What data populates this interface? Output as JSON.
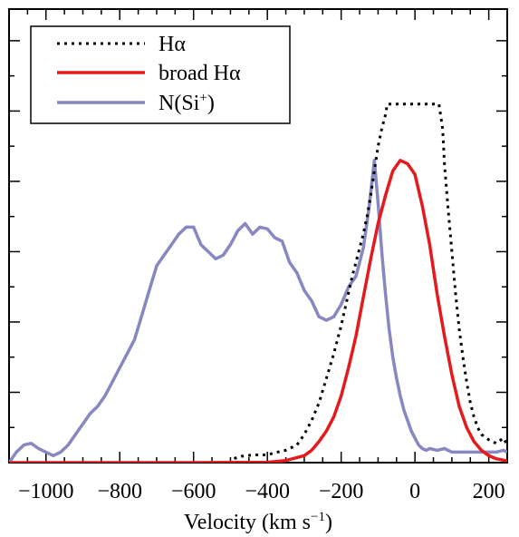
{
  "chart_data": {
    "type": "line",
    "xlabel": "Velocity (km s",
    "xlabel_sup": "−1",
    "xlabel_close": ")",
    "xlim": [
      -1100,
      250
    ],
    "ylim": [
      0,
      1
    ],
    "x_ticks": [
      -1000,
      -800,
      -600,
      -400,
      -200,
      0,
      200
    ],
    "x_tick_labels": [
      "−1000",
      "−800",
      "−600",
      "−400",
      "−200",
      "0",
      "200"
    ],
    "y_tick_count": 6,
    "legend_position": "top-left",
    "series": [
      {
        "name": "Hα",
        "color": "#000000",
        "style": "dotted",
        "x": [
          -490,
          -470,
          -440,
          -400,
          -380,
          -350,
          -320,
          -300,
          -280,
          -260,
          -240,
          -220,
          -200,
          -185,
          -170,
          -160,
          -150,
          -140,
          -130,
          -120,
          -110,
          -100,
          -90,
          -80,
          -75,
          65,
          75,
          80,
          90,
          100,
          110,
          120,
          130,
          140,
          150,
          160,
          170,
          180,
          200,
          220,
          240,
          250
        ],
        "y": [
          0.012,
          0.018,
          0.022,
          0.022,
          0.028,
          0.035,
          0.05,
          0.08,
          0.12,
          0.17,
          0.24,
          0.31,
          0.39,
          0.46,
          0.53,
          0.57,
          0.61,
          0.65,
          0.7,
          0.76,
          0.83,
          0.9,
          0.95,
          0.99,
          1.02,
          1.02,
          0.95,
          0.85,
          0.72,
          0.6,
          0.48,
          0.38,
          0.3,
          0.23,
          0.17,
          0.13,
          0.1,
          0.08,
          0.065,
          0.055,
          0.07,
          0.05
        ]
      },
      {
        "name": "broad Hα",
        "color": "#e41a1c",
        "style": "solid",
        "x": [
          -1100,
          -600,
          -400,
          -350,
          -300,
          -280,
          -260,
          -240,
          -220,
          -200,
          -180,
          -160,
          -140,
          -120,
          -100,
          -80,
          -60,
          -40,
          -20,
          0,
          20,
          40,
          60,
          80,
          100,
          120,
          140,
          160,
          180,
          200,
          220,
          250
        ],
        "y": [
          0,
          0,
          0.001,
          0.006,
          0.02,
          0.035,
          0.06,
          0.09,
          0.13,
          0.19,
          0.27,
          0.36,
          0.47,
          0.58,
          0.68,
          0.76,
          0.83,
          0.86,
          0.85,
          0.82,
          0.73,
          0.62,
          0.48,
          0.36,
          0.25,
          0.16,
          0.1,
          0.06,
          0.035,
          0.02,
          0.011,
          0.005
        ]
      },
      {
        "name": "N(Si",
        "name_sup": "+",
        "name_close": ")",
        "color": "#8787c2",
        "style": "solid",
        "x": [
          -1100,
          -1080,
          -1060,
          -1040,
          -1020,
          -1000,
          -980,
          -960,
          -940,
          -920,
          -900,
          -880,
          -860,
          -840,
          -820,
          -800,
          -780,
          -760,
          -740,
          -720,
          -700,
          -680,
          -660,
          -640,
          -620,
          -600,
          -580,
          -560,
          -540,
          -520,
          -500,
          -480,
          -460,
          -440,
          -420,
          -400,
          -380,
          -360,
          -340,
          -320,
          -300,
          -280,
          -260,
          -240,
          -220,
          -200,
          -180,
          -160,
          -140,
          -125,
          -110,
          -100,
          -90,
          -80,
          -70,
          -60,
          -50,
          -40,
          -30,
          -20,
          -10,
          0,
          10,
          20,
          30,
          40,
          60,
          80,
          100,
          140,
          180,
          200,
          220,
          240,
          250
        ],
        "y": [
          0.0,
          0.03,
          0.05,
          0.055,
          0.04,
          0.03,
          0.02,
          0.03,
          0.05,
          0.08,
          0.11,
          0.14,
          0.16,
          0.19,
          0.23,
          0.27,
          0.31,
          0.35,
          0.42,
          0.49,
          0.56,
          0.59,
          0.62,
          0.65,
          0.67,
          0.67,
          0.62,
          0.6,
          0.58,
          0.59,
          0.62,
          0.66,
          0.68,
          0.65,
          0.67,
          0.665,
          0.64,
          0.63,
          0.57,
          0.54,
          0.49,
          0.46,
          0.415,
          0.405,
          0.415,
          0.45,
          0.5,
          0.53,
          0.61,
          0.72,
          0.86,
          0.74,
          0.6,
          0.48,
          0.38,
          0.3,
          0.24,
          0.19,
          0.15,
          0.12,
          0.09,
          0.07,
          0.05,
          0.04,
          0.035,
          0.04,
          0.035,
          0.04,
          0.03,
          0.03,
          0.03,
          0.03,
          0.03,
          0.035,
          0.03
        ]
      }
    ]
  }
}
